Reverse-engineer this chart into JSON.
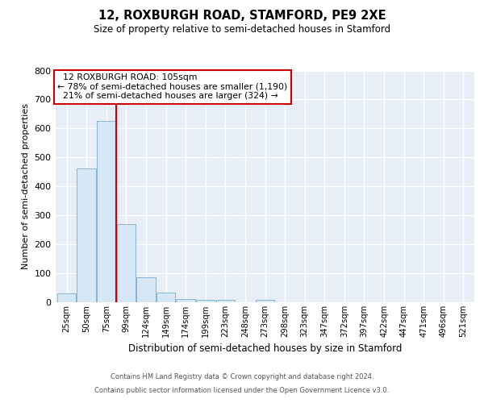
{
  "title1": "12, ROXBURGH ROAD, STAMFORD, PE9 2XE",
  "title2": "Size of property relative to semi-detached houses in Stamford",
  "xlabel": "Distribution of semi-detached houses by size in Stamford",
  "ylabel": "Number of semi-detached properties",
  "footnote1": "Contains HM Land Registry data © Crown copyright and database right 2024.",
  "footnote2": "Contains public sector information licensed under the Open Government Licence v3.0.",
  "property_label": "12 ROXBURGH ROAD: 105sqm",
  "pct_smaller": 78,
  "n_smaller": 1190,
  "pct_larger": 21,
  "n_larger": 324,
  "bar_color": "#d6e8f5",
  "bar_edge_color": "#8ab4d4",
  "vline_color": "#cc0000",
  "ann_edge_color": "#cc0000",
  "ylim": [
    0,
    800
  ],
  "yticks": [
    0,
    100,
    200,
    300,
    400,
    500,
    600,
    700,
    800
  ],
  "categories": [
    "25sqm",
    "50sqm",
    "75sqm",
    "99sqm",
    "124sqm",
    "149sqm",
    "174sqm",
    "199sqm",
    "223sqm",
    "248sqm",
    "273sqm",
    "298sqm",
    "323sqm",
    "347sqm",
    "372sqm",
    "397sqm",
    "422sqm",
    "447sqm",
    "471sqm",
    "496sqm",
    "521sqm"
  ],
  "values": [
    30,
    462,
    625,
    270,
    86,
    33,
    12,
    9,
    9,
    0,
    7,
    0,
    0,
    0,
    0,
    0,
    0,
    0,
    0,
    0,
    0
  ],
  "vline_x": 2.5,
  "fig_bg": "#ffffff",
  "plot_bg": "#e8eef8"
}
